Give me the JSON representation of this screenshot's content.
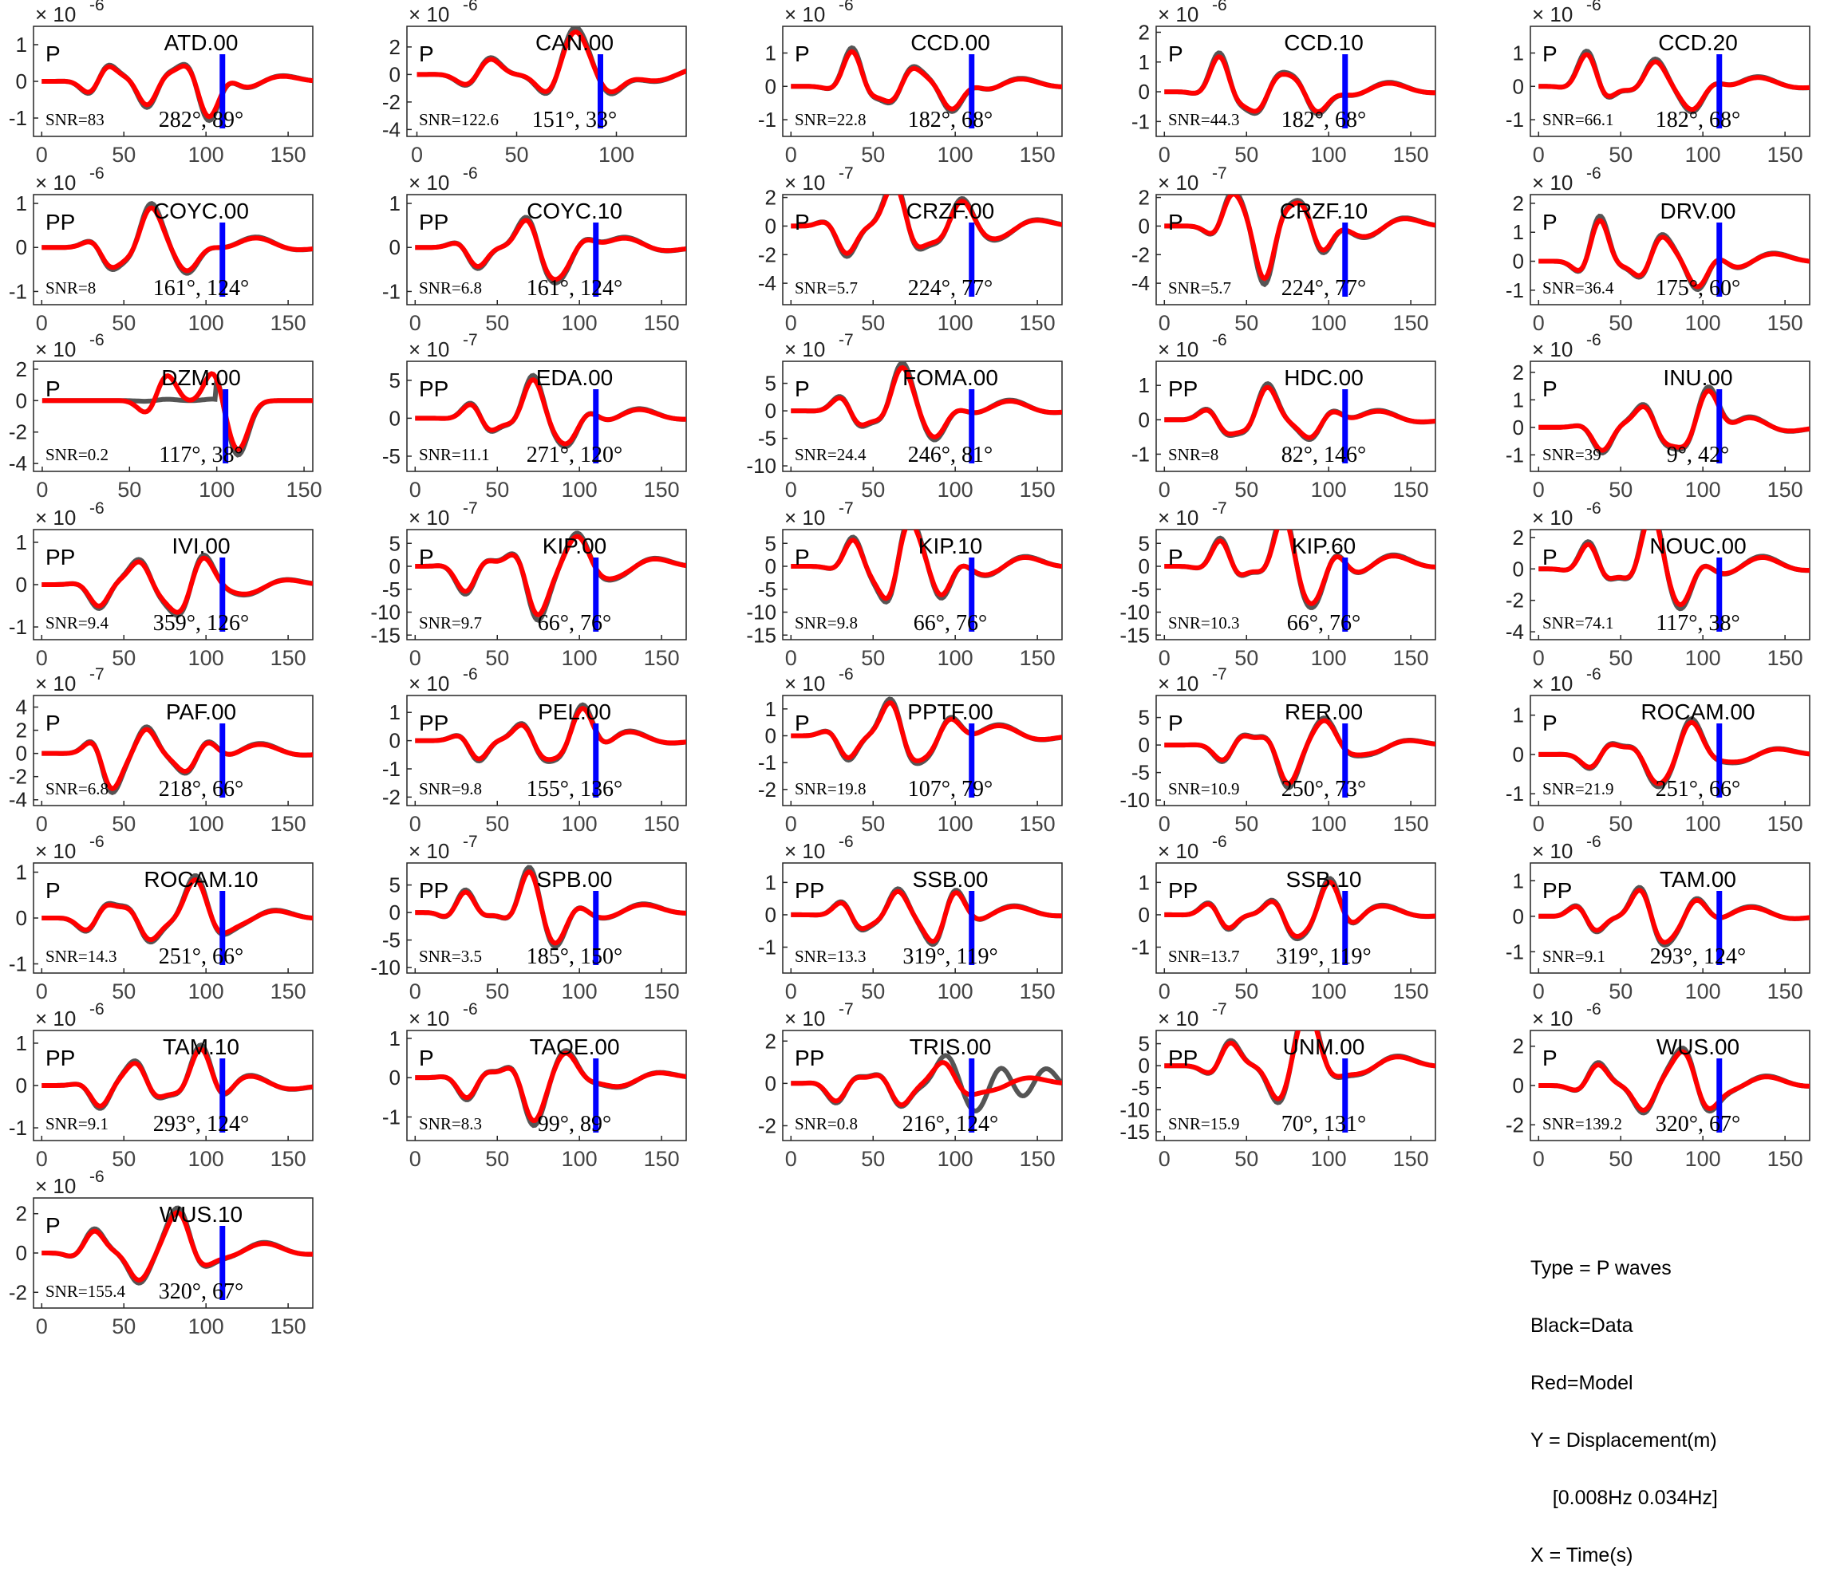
{
  "legend": {
    "type": "Type = P waves",
    "black": "Black=Data",
    "red": "Red=Model",
    "y": "Y = Displacement(m)",
    "band": "    [0.008Hz 0.034Hz]",
    "x": "X = Time(s)"
  },
  "colors": {
    "data": "#555555",
    "model": "#ff0000",
    "marker": "#0000ff",
    "axes": "#262626"
  },
  "chart_data": [
    {
      "type": "line",
      "station": "ATD.00",
      "phase": "P",
      "snr": "SNR=83",
      "az_dist": "282°, 89°",
      "exp": "-6",
      "ylim": [
        -1.5,
        1.5
      ],
      "yticks": [
        -1,
        0,
        1
      ],
      "xlim": [
        -5,
        165
      ],
      "xticks": [
        0,
        50,
        100,
        150
      ],
      "marker_x": 110,
      "data_seed": 1,
      "model_seed": 2,
      "amp": 1.1,
      "peak": "late"
    },
    {
      "type": "line",
      "station": "CAN.00",
      "phase": "P",
      "snr": "SNR=122.6",
      "az_dist": "151°, 33°",
      "exp": "-6",
      "ylim": [
        -4.5,
        3.5
      ],
      "yticks": [
        -4,
        -2,
        0,
        2
      ],
      "xlim": [
        -5,
        135
      ],
      "xticks": [
        0,
        50,
        100
      ],
      "marker_x": 92,
      "data_seed": 3,
      "model_seed": 4,
      "amp": 3.0,
      "peak": "mid"
    },
    {
      "type": "line",
      "station": "CCD.00",
      "phase": "P",
      "snr": "SNR=22.8",
      "az_dist": "182°, 68°",
      "exp": "-6",
      "ylim": [
        -1.5,
        1.8
      ],
      "yticks": [
        -1,
        0,
        1
      ],
      "xlim": [
        -5,
        165
      ],
      "xticks": [
        0,
        50,
        100,
        150
      ],
      "marker_x": 110,
      "data_seed": 5,
      "model_seed": 6,
      "amp": 1.2,
      "peak": "early"
    },
    {
      "type": "line",
      "station": "CCD.10",
      "phase": "P",
      "snr": "SNR=44.3",
      "az_dist": "182°, 68°",
      "exp": "-6",
      "ylim": [
        -1.5,
        2.2
      ],
      "yticks": [
        -1,
        0,
        1,
        2
      ],
      "xlim": [
        -5,
        165
      ],
      "xticks": [
        0,
        50,
        100,
        150
      ],
      "marker_x": 110,
      "data_seed": 7,
      "model_seed": 8,
      "amp": 1.4,
      "peak": "early"
    },
    {
      "type": "line",
      "station": "CCD.20",
      "phase": "P",
      "snr": "SNR=66.1",
      "az_dist": "182°, 68°",
      "exp": "-6",
      "ylim": [
        -1.5,
        1.8
      ],
      "yticks": [
        -1,
        0,
        1
      ],
      "xlim": [
        -5,
        165
      ],
      "xticks": [
        0,
        50,
        100,
        150
      ],
      "marker_x": 110,
      "data_seed": 9,
      "model_seed": 10,
      "amp": 1.2,
      "peak": "early"
    },
    {
      "type": "line",
      "station": "COYC.00",
      "phase": "PP",
      "snr": "SNR=8",
      "az_dist": "161°, 124°",
      "exp": "-6",
      "ylim": [
        -1.3,
        1.2
      ],
      "yticks": [
        -1,
        0,
        1
      ],
      "xlim": [
        -5,
        165
      ],
      "xticks": [
        0,
        50,
        100,
        150
      ],
      "marker_x": 110,
      "data_seed": 11,
      "model_seed": 12,
      "amp": 0.95,
      "peak": "mid"
    },
    {
      "type": "line",
      "station": "COYC.10",
      "phase": "PP",
      "snr": "SNR=6.8",
      "az_dist": "161°, 124°",
      "exp": "-6",
      "ylim": [
        -1.3,
        1.2
      ],
      "yticks": [
        -1,
        0,
        1
      ],
      "xlim": [
        -5,
        165
      ],
      "xticks": [
        0,
        50,
        100,
        150
      ],
      "marker_x": 110,
      "data_seed": 13,
      "model_seed": 14,
      "amp": 0.95,
      "peak": "mid"
    },
    {
      "type": "line",
      "station": "CRZF.00",
      "phase": "P",
      "snr": "SNR=5.7",
      "az_dist": "224°, 77°",
      "exp": "-7",
      "ylim": [
        -5.5,
        2.2
      ],
      "yticks": [
        -4,
        -2,
        0,
        2
      ],
      "xlim": [
        -5,
        165
      ],
      "xticks": [
        0,
        50,
        100,
        150
      ],
      "marker_x": 110,
      "data_seed": 15,
      "model_seed": 16,
      "amp": 4.0,
      "peak": "mid"
    },
    {
      "type": "line",
      "station": "CRZF.10",
      "phase": "P",
      "snr": "SNR=5.7",
      "az_dist": "224°, 77°",
      "exp": "-7",
      "ylim": [
        -5.5,
        2.2
      ],
      "yticks": [
        -4,
        -2,
        0,
        2
      ],
      "xlim": [
        -5,
        165
      ],
      "xticks": [
        0,
        50,
        100,
        150
      ],
      "marker_x": 110,
      "data_seed": 17,
      "model_seed": 18,
      "amp": 4.0,
      "peak": "mid"
    },
    {
      "type": "line",
      "station": "DRV.00",
      "phase": "P",
      "snr": "SNR=36.4",
      "az_dist": "175°, 60°",
      "exp": "-6",
      "ylim": [
        -1.5,
        2.3
      ],
      "yticks": [
        -1,
        0,
        1,
        2
      ],
      "xlim": [
        -5,
        165
      ],
      "xticks": [
        0,
        50,
        100,
        150
      ],
      "marker_x": 110,
      "data_seed": 19,
      "model_seed": 20,
      "amp": 1.6,
      "peak": "early"
    },
    {
      "type": "line",
      "station": "DZM.00",
      "phase": "P",
      "snr": "SNR=0.2",
      "az_dist": "117°, 38°",
      "exp": "-6",
      "ylim": [
        -4.5,
        2.5
      ],
      "yticks": [
        -4,
        -2,
        0,
        2
      ],
      "xlim": [
        -5,
        155
      ],
      "xticks": [
        0,
        50,
        100,
        150
      ],
      "marker_x": 105,
      "data_seed": 21,
      "model_seed": 22,
      "amp": 3.5,
      "peak": "flat"
    },
    {
      "type": "line",
      "station": "EDA.00",
      "phase": "PP",
      "snr": "SNR=11.1",
      "az_dist": "271°, 120°",
      "exp": "-7",
      "ylim": [
        -7,
        7.5
      ],
      "yticks": [
        -5,
        0,
        5
      ],
      "xlim": [
        -5,
        165
      ],
      "xticks": [
        0,
        50,
        100,
        150
      ],
      "marker_x": 110,
      "data_seed": 23,
      "model_seed": 24,
      "amp": 5.5,
      "peak": "mid"
    },
    {
      "type": "line",
      "station": "FOMA.00",
      "phase": "P",
      "snr": "SNR=24.4",
      "az_dist": "246°, 81°",
      "exp": "-7",
      "ylim": [
        -11,
        9
      ],
      "yticks": [
        -10,
        -5,
        0,
        5
      ],
      "xlim": [
        -5,
        165
      ],
      "xticks": [
        0,
        50,
        100,
        150
      ],
      "marker_x": 110,
      "data_seed": 25,
      "model_seed": 26,
      "amp": 8,
      "peak": "mid"
    },
    {
      "type": "line",
      "station": "HDC.00",
      "phase": "PP",
      "snr": "SNR=8",
      "az_dist": "82°, 146°",
      "exp": "-6",
      "ylim": [
        -1.5,
        1.7
      ],
      "yticks": [
        -1,
        0,
        1
      ],
      "xlim": [
        -5,
        165
      ],
      "xticks": [
        0,
        50,
        100,
        150
      ],
      "marker_x": 110,
      "data_seed": 27,
      "model_seed": 28,
      "amp": 1.1,
      "peak": "mid"
    },
    {
      "type": "line",
      "station": "INU.00",
      "phase": "P",
      "snr": "SNR=39",
      "az_dist": "9°, 42°",
      "exp": "-6",
      "ylim": [
        -1.6,
        2.4
      ],
      "yticks": [
        -1,
        0,
        1,
        2
      ],
      "xlim": [
        -5,
        165
      ],
      "xticks": [
        0,
        50,
        100,
        150
      ],
      "marker_x": 110,
      "data_seed": 29,
      "model_seed": 30,
      "amp": 1.7,
      "peak": "late"
    },
    {
      "type": "line",
      "station": "IVI.00",
      "phase": "PP",
      "snr": "SNR=9.4",
      "az_dist": "359°, 126°",
      "exp": "-6",
      "ylim": [
        -1.3,
        1.3
      ],
      "yticks": [
        -1,
        0,
        1
      ],
      "xlim": [
        -5,
        165
      ],
      "xticks": [
        0,
        50,
        100,
        150
      ],
      "marker_x": 110,
      "data_seed": 31,
      "model_seed": 32,
      "amp": 1.05,
      "peak": "late"
    },
    {
      "type": "line",
      "station": "KIP.00",
      "phase": "P",
      "snr": "SNR=9.7",
      "az_dist": "66°, 76°",
      "exp": "-7",
      "ylim": [
        -16,
        8
      ],
      "yticks": [
        -15,
        -10,
        -5,
        0,
        5
      ],
      "xlim": [
        -5,
        165
      ],
      "xticks": [
        0,
        50,
        100,
        150
      ],
      "marker_x": 110,
      "data_seed": 33,
      "model_seed": 34,
      "amp": 12,
      "peak": "mid"
    },
    {
      "type": "line",
      "station": "KIP.10",
      "phase": "P",
      "snr": "SNR=9.8",
      "az_dist": "66°, 76°",
      "exp": "-7",
      "ylim": [
        -16,
        8
      ],
      "yticks": [
        -15,
        -10,
        -5,
        0,
        5
      ],
      "xlim": [
        -5,
        165
      ],
      "xticks": [
        0,
        50,
        100,
        150
      ],
      "marker_x": 110,
      "data_seed": 35,
      "model_seed": 36,
      "amp": 12,
      "peak": "mid"
    },
    {
      "type": "line",
      "station": "KIP.60",
      "phase": "P",
      "snr": "SNR=10.3",
      "az_dist": "66°, 76°",
      "exp": "-7",
      "ylim": [
        -16,
        8
      ],
      "yticks": [
        -15,
        -10,
        -5,
        0,
        5
      ],
      "xlim": [
        -5,
        165
      ],
      "xticks": [
        0,
        50,
        100,
        150
      ],
      "marker_x": 110,
      "data_seed": 37,
      "model_seed": 38,
      "amp": 12,
      "peak": "mid"
    },
    {
      "type": "line",
      "station": "NOUC.00",
      "phase": "P",
      "snr": "SNR=74.1",
      "az_dist": "117°, 38°",
      "exp": "-6",
      "ylim": [
        -4.5,
        2.5
      ],
      "yticks": [
        -4,
        -2,
        0,
        2
      ],
      "xlim": [
        -5,
        165
      ],
      "xticks": [
        0,
        50,
        100,
        150
      ],
      "marker_x": 110,
      "data_seed": 39,
      "model_seed": 40,
      "amp": 3.5,
      "peak": "mid"
    },
    {
      "type": "line",
      "station": "PAF.00",
      "phase": "P",
      "snr": "SNR=6.8",
      "az_dist": "218°, 66°",
      "exp": "-7",
      "ylim": [
        -4.5,
        5
      ],
      "yticks": [
        -4,
        -2,
        0,
        2,
        4
      ],
      "xlim": [
        -5,
        165
      ],
      "xticks": [
        0,
        50,
        100,
        150
      ],
      "marker_x": 110,
      "data_seed": 41,
      "model_seed": 42,
      "amp": 3.5,
      "peak": "early"
    },
    {
      "type": "line",
      "station": "PEL.00",
      "phase": "PP",
      "snr": "SNR=9.8",
      "az_dist": "155°, 136°",
      "exp": "-6",
      "ylim": [
        -2.3,
        1.6
      ],
      "yticks": [
        -2,
        -1,
        0,
        1
      ],
      "xlim": [
        -5,
        165
      ],
      "xticks": [
        0,
        50,
        100,
        150
      ],
      "marker_x": 110,
      "data_seed": 43,
      "model_seed": 44,
      "amp": 1.4,
      "peak": "late"
    },
    {
      "type": "line",
      "station": "PPTF.00",
      "phase": "P",
      "snr": "SNR=19.8",
      "az_dist": "107°, 79°",
      "exp": "-6",
      "ylim": [
        -2.6,
        1.5
      ],
      "yticks": [
        -2,
        -1,
        0,
        1
      ],
      "xlim": [
        -5,
        165
      ],
      "xticks": [
        0,
        50,
        100,
        150
      ],
      "marker_x": 110,
      "data_seed": 45,
      "model_seed": 46,
      "amp": 1.7,
      "peak": "mid"
    },
    {
      "type": "line",
      "station": "RER.00",
      "phase": "P",
      "snr": "SNR=10.9",
      "az_dist": "250°, 73°",
      "exp": "-7",
      "ylim": [
        -11,
        9
      ],
      "yticks": [
        -10,
        -5,
        0,
        5
      ],
      "xlim": [
        -5,
        165
      ],
      "xticks": [
        0,
        50,
        100,
        150
      ],
      "marker_x": 110,
      "data_seed": 47,
      "model_seed": 48,
      "amp": 7.5,
      "peak": "mid"
    },
    {
      "type": "line",
      "station": "ROCAM.00",
      "phase": "P",
      "snr": "SNR=21.9",
      "az_dist": "251°, 66°",
      "exp": "-6",
      "ylim": [
        -1.3,
        1.5
      ],
      "yticks": [
        -1,
        0,
        1
      ],
      "xlim": [
        -5,
        165
      ],
      "xticks": [
        0,
        50,
        100,
        150
      ],
      "marker_x": 110,
      "data_seed": 49,
      "model_seed": 50,
      "amp": 1.0,
      "peak": "late"
    },
    {
      "type": "line",
      "station": "ROCAM.10",
      "phase": "P",
      "snr": "SNR=14.3",
      "az_dist": "251°, 66°",
      "exp": "-6",
      "ylim": [
        -1.2,
        1.2
      ],
      "yticks": [
        -1,
        0,
        1
      ],
      "xlim": [
        -5,
        165
      ],
      "xticks": [
        0,
        50,
        100,
        150
      ],
      "marker_x": 110,
      "data_seed": 51,
      "model_seed": 52,
      "amp": 0.95,
      "peak": "late"
    },
    {
      "type": "line",
      "station": "SPB.00",
      "phase": "PP",
      "snr": "SNR=3.5",
      "az_dist": "185°, 150°",
      "exp": "-7",
      "ylim": [
        -11,
        9
      ],
      "yticks": [
        -10,
        -5,
        0,
        5
      ],
      "xlim": [
        -5,
        165
      ],
      "xticks": [
        0,
        50,
        100,
        150
      ],
      "marker_x": 110,
      "data_seed": 53,
      "model_seed": 54,
      "amp": 7.5,
      "peak": "mid"
    },
    {
      "type": "line",
      "station": "SSB.00",
      "phase": "PP",
      "snr": "SNR=13.3",
      "az_dist": "319°, 119°",
      "exp": "-6",
      "ylim": [
        -1.8,
        1.6
      ],
      "yticks": [
        -1,
        0,
        1
      ],
      "xlim": [
        -5,
        165
      ],
      "xticks": [
        0,
        50,
        100,
        150
      ],
      "marker_x": 110,
      "data_seed": 55,
      "model_seed": 56,
      "amp": 1.2,
      "peak": "late"
    },
    {
      "type": "line",
      "station": "SSB.10",
      "phase": "PP",
      "snr": "SNR=13.7",
      "az_dist": "319°, 119°",
      "exp": "-6",
      "ylim": [
        -1.8,
        1.6
      ],
      "yticks": [
        -1,
        0,
        1
      ],
      "xlim": [
        -5,
        165
      ],
      "xticks": [
        0,
        50,
        100,
        150
      ],
      "marker_x": 110,
      "data_seed": 57,
      "model_seed": 58,
      "amp": 1.2,
      "peak": "late"
    },
    {
      "type": "line",
      "station": "TAM.00",
      "phase": "PP",
      "snr": "SNR=9.1",
      "az_dist": "293°, 124°",
      "exp": "-6",
      "ylim": [
        -1.6,
        1.5
      ],
      "yticks": [
        -1,
        0,
        1
      ],
      "xlim": [
        -5,
        165
      ],
      "xticks": [
        0,
        50,
        100,
        150
      ],
      "marker_x": 110,
      "data_seed": 59,
      "model_seed": 60,
      "amp": 1.1,
      "peak": "mid"
    },
    {
      "type": "line",
      "station": "TAM.10",
      "phase": "PP",
      "snr": "SNR=9.1",
      "az_dist": "293°, 124°",
      "exp": "-6",
      "ylim": [
        -1.3,
        1.3
      ],
      "yticks": [
        -1,
        0,
        1
      ],
      "xlim": [
        -5,
        165
      ],
      "xticks": [
        0,
        50,
        100,
        150
      ],
      "marker_x": 110,
      "data_seed": 61,
      "model_seed": 62,
      "amp": 1.0,
      "peak": "late"
    },
    {
      "type": "line",
      "station": "TAOE.00",
      "phase": "P",
      "snr": "SNR=8.3",
      "az_dist": "99°, 89°",
      "exp": "-6",
      "ylim": [
        -1.6,
        1.2
      ],
      "yticks": [
        -1,
        0,
        1
      ],
      "xlim": [
        -5,
        165
      ],
      "xticks": [
        0,
        50,
        100,
        150
      ],
      "marker_x": 110,
      "data_seed": 63,
      "model_seed": 64,
      "amp": 1.1,
      "peak": "mid"
    },
    {
      "type": "line",
      "station": "TRIS.00",
      "phase": "PP",
      "snr": "SNR=0.8",
      "az_dist": "216°, 124°",
      "exp": "-7",
      "ylim": [
        -2.7,
        2.5
      ],
      "yticks": [
        -2,
        0,
        2
      ],
      "xlim": [
        -5,
        165
      ],
      "xticks": [
        0,
        50,
        100,
        150
      ],
      "marker_x": 110,
      "data_seed": 65,
      "model_seed": 66,
      "amp": 1.9,
      "peak": "noisy"
    },
    {
      "type": "line",
      "station": "UNM.00",
      "phase": "PP",
      "snr": "SNR=15.9",
      "az_dist": "70°, 131°",
      "exp": "-7",
      "ylim": [
        -17,
        8
      ],
      "yticks": [
        -15,
        -10,
        -5,
        0,
        5
      ],
      "xlim": [
        -5,
        165
      ],
      "xticks": [
        0,
        50,
        100,
        150
      ],
      "marker_x": 110,
      "data_seed": 67,
      "model_seed": 68,
      "amp": 12,
      "peak": "late"
    },
    {
      "type": "line",
      "station": "WUS.00",
      "phase": "P",
      "snr": "SNR=139.2",
      "az_dist": "320°, 67°",
      "exp": "-6",
      "ylim": [
        -2.8,
        2.8
      ],
      "yticks": [
        -2,
        0,
        2
      ],
      "xlim": [
        -5,
        165
      ],
      "xticks": [
        0,
        50,
        100,
        150
      ],
      "marker_x": 110,
      "data_seed": 69,
      "model_seed": 70,
      "amp": 2.3,
      "peak": "late"
    },
    {
      "type": "line",
      "station": "WUS.10",
      "phase": "P",
      "snr": "SNR=155.4",
      "az_dist": "320°, 67°",
      "exp": "-6",
      "ylim": [
        -2.8,
        2.8
      ],
      "yticks": [
        -2,
        0,
        2
      ],
      "xlim": [
        -5,
        165
      ],
      "xticks": [
        0,
        50,
        100,
        150
      ],
      "marker_x": 110,
      "data_seed": 71,
      "model_seed": 72,
      "amp": 2.3,
      "peak": "late"
    }
  ]
}
